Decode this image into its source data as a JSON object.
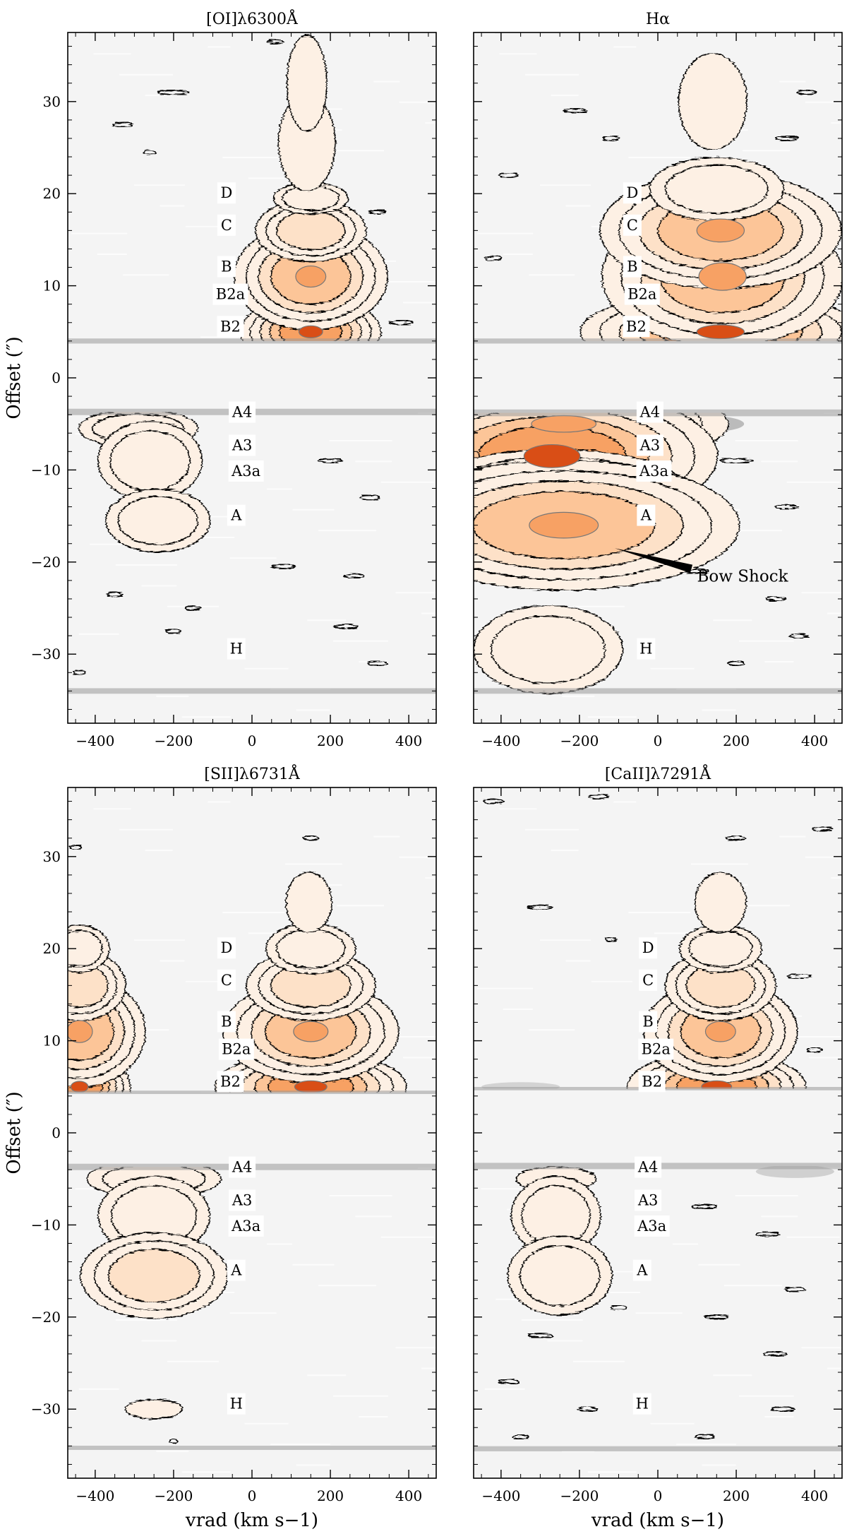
{
  "chart_data": [
    {
      "type": "heatmap",
      "title": "[OI]λ6300Å",
      "xlabel": "",
      "ylabel": "Offset (″)",
      "xlim": [
        -470,
        470
      ],
      "ylim": [
        -37.5,
        37.5
      ],
      "xticks": [
        -400,
        -200,
        0,
        200,
        400
      ],
      "yticks": [
        30,
        20,
        10,
        0,
        -10,
        -20,
        -30
      ],
      "xtick_labels": [
        "−400",
        "−200",
        "0",
        "200",
        "400"
      ],
      "ytick_labels": [
        "30",
        "20",
        "10",
        "0",
        "−10",
        "−20",
        "−30"
      ],
      "knot_labels": [
        {
          "text": "D",
          "x": -65,
          "y": 20
        },
        {
          "text": "C",
          "x": -65,
          "y": 16.5
        },
        {
          "text": "B",
          "x": -65,
          "y": 12
        },
        {
          "text": "B2a",
          "x": -55,
          "y": 9
        },
        {
          "text": "B2",
          "x": -55,
          "y": 5.5
        },
        {
          "text": "A4",
          "x": -25,
          "y": -3.8
        },
        {
          "text": "A3",
          "x": -25,
          "y": -7.4
        },
        {
          "text": "A3a",
          "x": -15,
          "y": -10.2
        },
        {
          "text": "A",
          "x": -40,
          "y": -15
        },
        {
          "text": "H",
          "x": -40,
          "y": -29.5
        }
      ],
      "emission": [
        {
          "x": 150,
          "y": 5,
          "sx": 55,
          "sy": 1.3,
          "level": 5
        },
        {
          "x": 150,
          "y": 11,
          "sx": 70,
          "sy": 2.3,
          "level": 4
        },
        {
          "x": 150,
          "y": 16,
          "sx": 60,
          "sy": 1.6,
          "level": 3
        },
        {
          "x": 150,
          "y": 19.5,
          "sx": 50,
          "sy": 1.0,
          "level": 2
        },
        {
          "x": 140,
          "y": 25.5,
          "sx": 50,
          "sy": 4.0,
          "level": 1
        },
        {
          "x": 140,
          "y": 32,
          "sx": 35,
          "sy": 4.0,
          "level": 1
        },
        {
          "x": -290,
          "y": -5.5,
          "sx": 80,
          "sy": 1.2,
          "level": 2
        },
        {
          "x": -260,
          "y": -9,
          "sx": 70,
          "sy": 2.5,
          "level": 2
        },
        {
          "x": -240,
          "y": -15.5,
          "sx": 70,
          "sy": 2.0,
          "level": 2
        }
      ],
      "noise": [
        {
          "x": -200,
          "y": 31,
          "w": 80
        },
        {
          "x": 60,
          "y": 36.5,
          "w": 40
        },
        {
          "x": -330,
          "y": 27.5,
          "w": 50
        },
        {
          "x": -260,
          "y": 24.5,
          "w": 30
        },
        {
          "x": 320,
          "y": 18,
          "w": 40
        },
        {
          "x": 380,
          "y": 6,
          "w": 60
        },
        {
          "x": 200,
          "y": -9,
          "w": 60
        },
        {
          "x": 300,
          "y": -13,
          "w": 50
        },
        {
          "x": -150,
          "y": -25,
          "w": 40
        },
        {
          "x": 80,
          "y": -20.5,
          "w": 60
        },
        {
          "x": 260,
          "y": -21.5,
          "w": 50
        },
        {
          "x": -350,
          "y": -23.5,
          "w": 40
        },
        {
          "x": -200,
          "y": -27.5,
          "w": 40
        },
        {
          "x": 240,
          "y": -27,
          "w": 60
        },
        {
          "x": 320,
          "y": -31,
          "w": 50
        },
        {
          "x": -440,
          "y": -32,
          "w": 30
        }
      ],
      "bands": [
        {
          "y": 4.0,
          "x0": -470,
          "x1": 470,
          "weight": 1.2
        },
        {
          "y": -3.7,
          "x0": -470,
          "x1": 470,
          "weight": 1.5
        },
        {
          "y": -34.0,
          "x0": -470,
          "x1": 470,
          "weight": 1.3
        }
      ],
      "masks": [
        {
          "y0": -3.7,
          "y1": 4.0
        }
      ]
    },
    {
      "type": "heatmap",
      "title": "Hα",
      "xlabel": "",
      "ylabel": "",
      "xlim": [
        -470,
        470
      ],
      "ylim": [
        -37.5,
        37.5
      ],
      "xticks": [
        -400,
        -200,
        0,
        200,
        400
      ],
      "yticks": [
        30,
        20,
        10,
        0,
        -10,
        -20,
        -30
      ],
      "xtick_labels": [
        "−400",
        "−200",
        "0",
        "200",
        "400"
      ],
      "ytick_labels": [],
      "knot_labels": [
        {
          "text": "D",
          "x": -65,
          "y": 20
        },
        {
          "text": "C",
          "x": -65,
          "y": 16.5
        },
        {
          "text": "B",
          "x": -65,
          "y": 12
        },
        {
          "text": "B2a",
          "x": -40,
          "y": 9
        },
        {
          "text": "B2",
          "x": -55,
          "y": 5.5
        },
        {
          "text": "A4",
          "x": -20,
          "y": -3.8
        },
        {
          "text": "A3",
          "x": -20,
          "y": -7.4
        },
        {
          "text": "A3a",
          "x": -10,
          "y": -10.2
        },
        {
          "text": "A",
          "x": -30,
          "y": -15
        },
        {
          "text": "H",
          "x": -30,
          "y": -29.5
        }
      ],
      "annotation": {
        "text": "Bow Shock",
        "text_x": 100,
        "text_y": -21.5,
        "arrow_to_x": -110,
        "arrow_to_y": -18.5
      },
      "emission": [
        {
          "x": 160,
          "y": 5,
          "sx": 110,
          "sy": 1.5,
          "level": 5
        },
        {
          "x": 165,
          "y": 11,
          "sx": 110,
          "sy": 3.0,
          "level": 4
        },
        {
          "x": 160,
          "y": 16,
          "sx": 110,
          "sy": 2.5,
          "level": 4
        },
        {
          "x": 150,
          "y": 20.5,
          "sx": 90,
          "sy": 2.0,
          "level": 2
        },
        {
          "x": 140,
          "y": 30,
          "sx": 60,
          "sy": 4.0,
          "level": 1
        },
        {
          "x": -240,
          "y": -5,
          "sx": 150,
          "sy": 1.8,
          "level": 4
        },
        {
          "x": -270,
          "y": -8.5,
          "sx": 130,
          "sy": 2.5,
          "level": 5
        },
        {
          "x": -260,
          "y": -12,
          "sx": 140,
          "sy": 2.0,
          "level": 3
        },
        {
          "x": -240,
          "y": -16,
          "sx": 160,
          "sy": 2.8,
          "level": 4
        },
        {
          "x": -280,
          "y": -29.5,
          "sx": 100,
          "sy": 2.8,
          "level": 2
        }
      ],
      "noise": [
        {
          "x": -380,
          "y": 22,
          "w": 50
        },
        {
          "x": -420,
          "y": 13,
          "w": 40
        },
        {
          "x": 330,
          "y": 26,
          "w": 60
        },
        {
          "x": 380,
          "y": 31,
          "w": 50
        },
        {
          "x": -120,
          "y": 26,
          "w": 40
        },
        {
          "x": -210,
          "y": 29,
          "w": 60
        },
        {
          "x": 380,
          "y": 5.5,
          "w": 80
        },
        {
          "x": 200,
          "y": -9,
          "w": 80
        },
        {
          "x": 330,
          "y": -14,
          "w": 60
        },
        {
          "x": 100,
          "y": -21,
          "w": 60
        },
        {
          "x": 300,
          "y": -24,
          "w": 50
        },
        {
          "x": -350,
          "y": -22.5,
          "w": 50
        },
        {
          "x": 360,
          "y": -28,
          "w": 50
        },
        {
          "x": 200,
          "y": -31,
          "w": 40
        }
      ],
      "bands": [
        {
          "y": 4.0,
          "x0": -470,
          "x1": 470,
          "weight": 1.2
        },
        {
          "y": -3.8,
          "x0": -470,
          "x1": 470,
          "weight": 1.6
        },
        {
          "y": -34.0,
          "x0": -470,
          "x1": 470,
          "weight": 1.3
        }
      ],
      "gray_blobs": [
        {
          "x": 120,
          "y": -5.0,
          "sx": 100,
          "sy": 0.9,
          "shade": 0.55
        },
        {
          "x": 300,
          "y": 4.4,
          "sx": 60,
          "sy": 0.5,
          "shade": 0.7
        }
      ],
      "masks": [
        {
          "y0": -3.8,
          "y1": 4.0
        }
      ]
    },
    {
      "type": "heatmap",
      "title": "[SII]λ6731Å",
      "xlabel": "vrad (km s−1)",
      "ylabel": "Offset (″)",
      "xlim": [
        -470,
        470
      ],
      "ylim": [
        -37.5,
        37.5
      ],
      "xticks": [
        -400,
        -200,
        0,
        200,
        400
      ],
      "yticks": [
        30,
        20,
        10,
        0,
        -10,
        -20,
        -30
      ],
      "xtick_labels": [
        "−400",
        "−200",
        "0",
        "200",
        "400"
      ],
      "ytick_labels": [
        "30",
        "20",
        "10",
        "0",
        "−10",
        "−20",
        "−30"
      ],
      "knot_labels": [
        {
          "text": "D",
          "x": -65,
          "y": 20
        },
        {
          "text": "C",
          "x": -65,
          "y": 16.5
        },
        {
          "text": "B",
          "x": -65,
          "y": 12
        },
        {
          "text": "B2a",
          "x": -40,
          "y": 9
        },
        {
          "text": "B2",
          "x": -55,
          "y": 5.5
        },
        {
          "text": "A4",
          "x": -25,
          "y": -3.8
        },
        {
          "text": "A3",
          "x": -25,
          "y": -7.4
        },
        {
          "text": "A3a",
          "x": -15,
          "y": -10.2
        },
        {
          "text": "A",
          "x": -40,
          "y": -15
        },
        {
          "text": "H",
          "x": -40,
          "y": -29.5
        }
      ],
      "emission": [
        {
          "x": 150,
          "y": 5,
          "sx": 75,
          "sy": 1.3,
          "level": 5
        },
        {
          "x": 150,
          "y": 11,
          "sx": 80,
          "sy": 2.2,
          "level": 4
        },
        {
          "x": 150,
          "y": 16,
          "sx": 70,
          "sy": 1.8,
          "level": 3
        },
        {
          "x": 150,
          "y": 20,
          "sx": 60,
          "sy": 1.6,
          "level": 2
        },
        {
          "x": 145,
          "y": 25,
          "sx": 40,
          "sy": 2.5,
          "level": 1
        },
        {
          "x": -440,
          "y": 5,
          "sx": 40,
          "sy": 1.2,
          "level": 5
        },
        {
          "x": -440,
          "y": 11,
          "sx": 60,
          "sy": 2.4,
          "level": 4
        },
        {
          "x": -440,
          "y": 16,
          "sx": 50,
          "sy": 1.8,
          "level": 3
        },
        {
          "x": -440,
          "y": 20,
          "sx": 40,
          "sy": 1.5,
          "level": 2
        },
        {
          "x": -250,
          "y": -5,
          "sx": 90,
          "sy": 1.2,
          "level": 2
        },
        {
          "x": -250,
          "y": -9,
          "sx": 75,
          "sy": 2.5,
          "level": 2
        },
        {
          "x": -250,
          "y": -15.5,
          "sx": 80,
          "sy": 2.2,
          "level": 3
        },
        {
          "x": -250,
          "y": -30,
          "sx": 50,
          "sy": 0.8,
          "level": 1
        }
      ],
      "noise": [
        {
          "x": 150,
          "y": 32,
          "w": 40
        },
        {
          "x": -450,
          "y": 31,
          "w": 30
        },
        {
          "x": -200,
          "y": -33.5,
          "w": 20
        }
      ],
      "bands": [
        {
          "y": 4.4,
          "x0": -470,
          "x1": 470,
          "weight": 0.8
        },
        {
          "y": -3.7,
          "x0": -470,
          "x1": 470,
          "weight": 1.5
        },
        {
          "y": -34.2,
          "x0": -470,
          "x1": 470,
          "weight": 1.0
        }
      ],
      "masks": [
        {
          "y0": -3.7,
          "y1": 4.4
        }
      ]
    },
    {
      "type": "heatmap",
      "title": "[CaII]λ7291Å",
      "xlabel": "vrad (km s−1)",
      "ylabel": "",
      "xlim": [
        -470,
        470
      ],
      "ylim": [
        -37.5,
        37.5
      ],
      "xticks": [
        -400,
        -200,
        0,
        200,
        400
      ],
      "yticks": [
        30,
        20,
        10,
        0,
        -10,
        -20,
        -30
      ],
      "xtick_labels": [
        "−400",
        "−200",
        "0",
        "200",
        "400"
      ],
      "ytick_labels": [],
      "knot_labels": [
        {
          "text": "D",
          "x": -25,
          "y": 20
        },
        {
          "text": "C",
          "x": -25,
          "y": 16.5
        },
        {
          "text": "B",
          "x": -25,
          "y": 12
        },
        {
          "text": "B2a",
          "x": -5,
          "y": 9
        },
        {
          "text": "B2",
          "x": -15,
          "y": 5.5
        },
        {
          "text": "A4",
          "x": -25,
          "y": -3.8
        },
        {
          "text": "A3",
          "x": -25,
          "y": -7.4
        },
        {
          "text": "A3a",
          "x": -15,
          "y": -10.2
        },
        {
          "text": "A",
          "x": -40,
          "y": -15
        },
        {
          "text": "H",
          "x": -40,
          "y": -29.5
        }
      ],
      "emission": [
        {
          "x": 150,
          "y": 5,
          "sx": 70,
          "sy": 1.3,
          "level": 5
        },
        {
          "x": 160,
          "y": 11,
          "sx": 70,
          "sy": 2.2,
          "level": 4
        },
        {
          "x": 160,
          "y": 16,
          "sx": 60,
          "sy": 1.8,
          "level": 3
        },
        {
          "x": 160,
          "y": 20,
          "sx": 55,
          "sy": 1.5,
          "level": 2
        },
        {
          "x": 160,
          "y": 25,
          "sx": 45,
          "sy": 2.5,
          "level": 1
        },
        {
          "x": -260,
          "y": -5,
          "sx": 70,
          "sy": 1.0,
          "level": 1
        },
        {
          "x": -260,
          "y": -9,
          "sx": 60,
          "sy": 2.5,
          "level": 2
        },
        {
          "x": -250,
          "y": -15.5,
          "sx": 70,
          "sy": 2.5,
          "level": 2
        }
      ],
      "noise": [
        {
          "x": 200,
          "y": 32,
          "w": 50
        },
        {
          "x": -420,
          "y": 36,
          "w": 50
        },
        {
          "x": -150,
          "y": 36.5,
          "w": 50
        },
        {
          "x": 420,
          "y": 33,
          "w": 50
        },
        {
          "x": -300,
          "y": 24.5,
          "w": 60
        },
        {
          "x": -120,
          "y": 21,
          "w": 30
        },
        {
          "x": 360,
          "y": 17,
          "w": 60
        },
        {
          "x": 400,
          "y": 9,
          "w": 40
        },
        {
          "x": 120,
          "y": -8,
          "w": 60
        },
        {
          "x": 280,
          "y": -11,
          "w": 60
        },
        {
          "x": 350,
          "y": -17,
          "w": 50
        },
        {
          "x": -100,
          "y": -19,
          "w": 40
        },
        {
          "x": 150,
          "y": -20,
          "w": 60
        },
        {
          "x": -300,
          "y": -22,
          "w": 60
        },
        {
          "x": 300,
          "y": -24,
          "w": 60
        },
        {
          "x": -380,
          "y": -27,
          "w": 50
        },
        {
          "x": -180,
          "y": -30,
          "w": 50
        },
        {
          "x": 320,
          "y": -30,
          "w": 60
        },
        {
          "x": -350,
          "y": -33,
          "w": 40
        },
        {
          "x": 120,
          "y": -33,
          "w": 50
        }
      ],
      "bands": [
        {
          "y": 4.8,
          "x0": -470,
          "x1": 470,
          "weight": 0.8
        },
        {
          "y": -3.6,
          "x0": -470,
          "x1": 470,
          "weight": 1.5
        },
        {
          "y": -34.3,
          "x0": -470,
          "x1": 470,
          "weight": 1.2
        }
      ],
      "gray_blobs": [
        {
          "x": -350,
          "y": 5.0,
          "sx": 100,
          "sy": 0.5,
          "shade": 0.72
        },
        {
          "x": -150,
          "y": -3.0,
          "sx": 120,
          "sy": 0.4,
          "shade": 0.7
        },
        {
          "x": 350,
          "y": -4.2,
          "sx": 100,
          "sy": 0.7,
          "shade": 0.7
        }
      ],
      "masks": [
        {
          "y0": -3.6,
          "y1": 4.8
        }
      ]
    }
  ],
  "colors": {
    "background": "#f4f4f4",
    "contour": "#000000",
    "level1": "#fdf0e4",
    "level2": "#fde1c8",
    "level3": "#fcc598",
    "level4": "#f7a164",
    "level5": "#d94e16",
    "inner_contour": "#777777",
    "band_gray": "#999999",
    "annotation": "#000000"
  }
}
